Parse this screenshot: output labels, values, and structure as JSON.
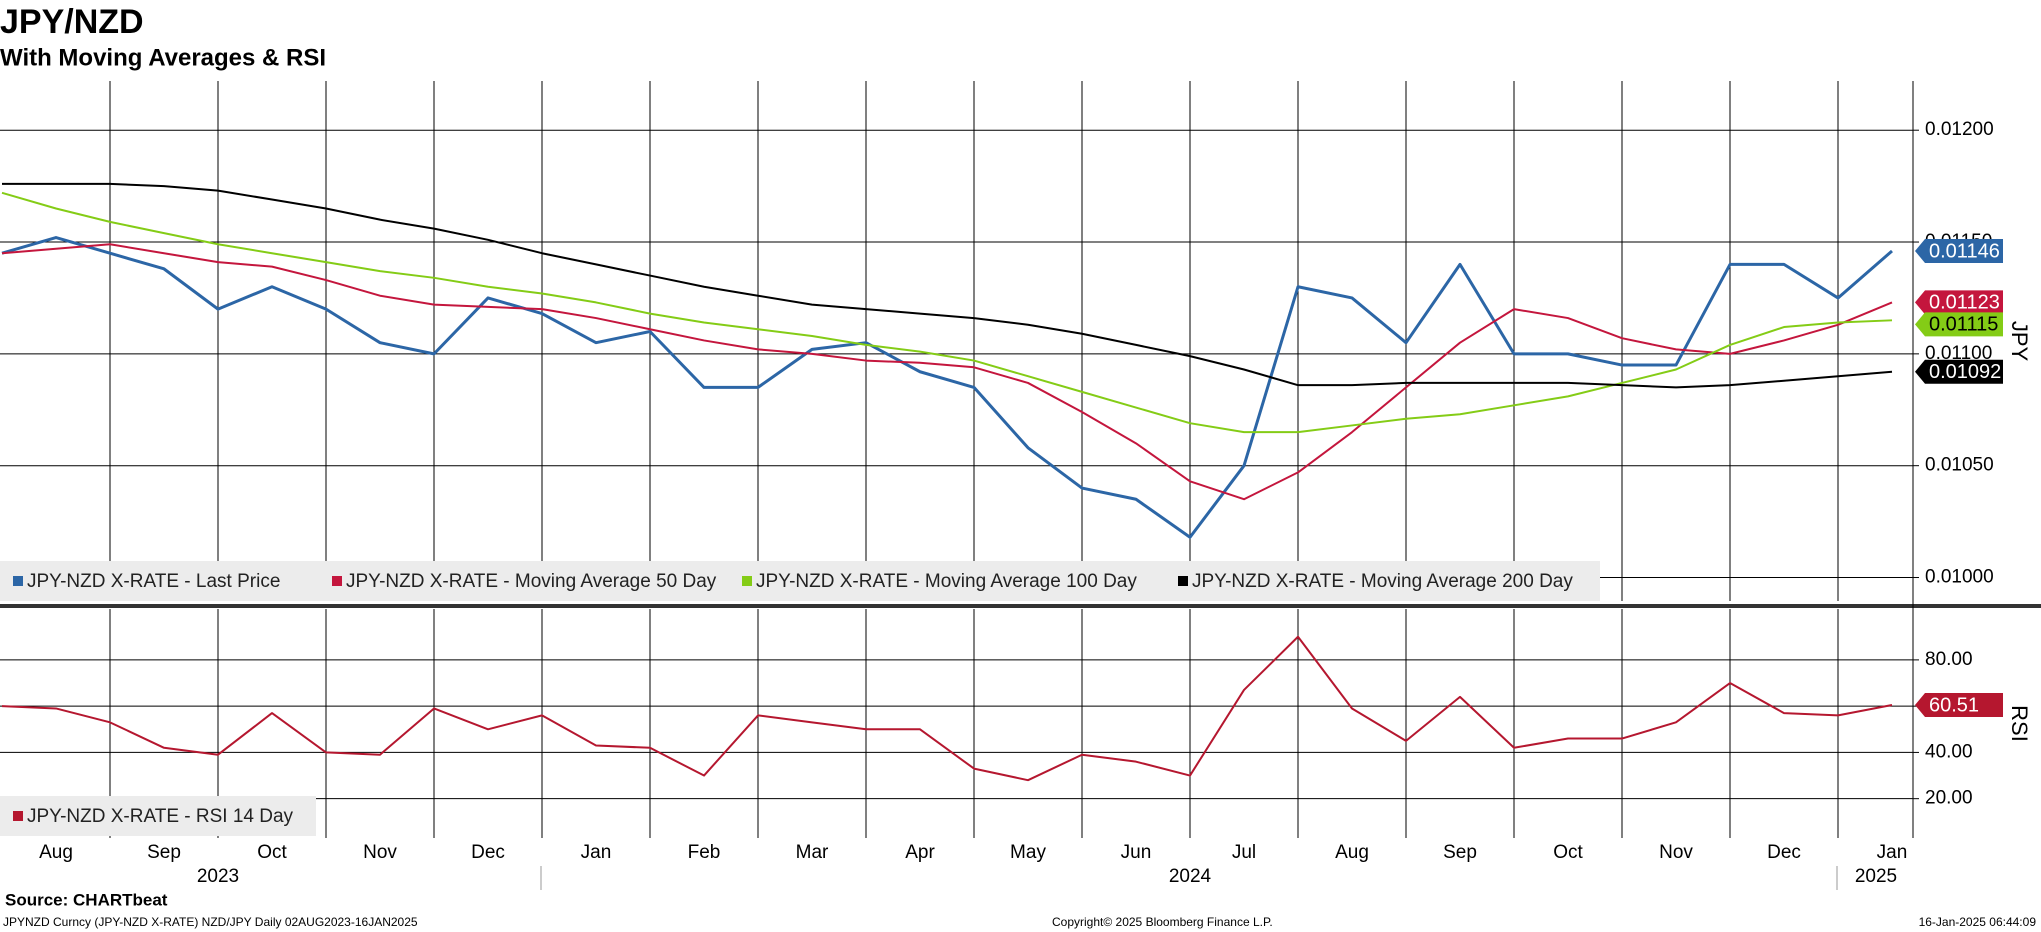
{
  "title": "JPY/NZD",
  "subtitle": "With Moving Averages & RSI",
  "chart_data": [
    {
      "type": "line",
      "y_label": "JPY",
      "ylim": [
        0.009895,
        0.01222
      ],
      "yticks": [
        {
          "value": 0.012,
          "label": "0.01200"
        },
        {
          "value": 0.0115,
          "label": "0.01150"
        },
        {
          "value": 0.011,
          "label": "0.01100"
        },
        {
          "value": 0.0105,
          "label": "0.01050"
        },
        {
          "value": 0.01,
          "label": "0.01000"
        }
      ],
      "grid": true,
      "legend": "lower left",
      "series": [
        {
          "name": "JPY-NZD X-RATE - Last Price",
          "color": "#2c66a6",
          "values": [
            0.01145,
            0.01152,
            0.01145,
            0.01138,
            0.0112,
            0.0113,
            0.0112,
            0.01105,
            0.011,
            0.01125,
            0.01118,
            0.01105,
            0.0111,
            0.01085,
            0.01085,
            0.01102,
            0.01105,
            0.01092,
            0.01085,
            0.01058,
            0.0104,
            0.01035,
            0.01018,
            0.0105,
            0.0113,
            0.01125,
            0.01105,
            0.0114,
            0.011,
            0.011,
            0.01095,
            0.01095,
            0.0114,
            0.0114,
            0.01125,
            0.01146
          ]
        },
        {
          "name": "JPY-NZD X-RATE - Moving Average 50 Day",
          "color": "#c4163d",
          "values": [
            0.01145,
            0.01147,
            0.01149,
            0.01145,
            0.01141,
            0.01139,
            0.01133,
            0.01126,
            0.01122,
            0.01121,
            0.0112,
            0.01116,
            0.01111,
            0.01106,
            0.01102,
            0.011,
            0.01097,
            0.01096,
            0.01094,
            0.01087,
            0.01074,
            0.0106,
            0.01043,
            0.01035,
            0.01047,
            0.01065,
            0.01085,
            0.01105,
            0.0112,
            0.01116,
            0.01107,
            0.01102,
            0.011,
            0.01106,
            0.01113,
            0.01123
          ]
        },
        {
          "name": "JPY-NZD X-RATE - Moving Average 100 Day",
          "color": "#84cc16",
          "values": [
            0.01172,
            0.01165,
            0.01159,
            0.01154,
            0.01149,
            0.01145,
            0.01141,
            0.01137,
            0.01134,
            0.0113,
            0.01127,
            0.01123,
            0.01118,
            0.01114,
            0.01111,
            0.01108,
            0.01104,
            0.01101,
            0.01097,
            0.0109,
            0.01083,
            0.01076,
            0.01069,
            0.01065,
            0.01065,
            0.01068,
            0.01071,
            0.01073,
            0.01077,
            0.01081,
            0.01087,
            0.01093,
            0.01104,
            0.01112,
            0.01114,
            0.01115
          ]
        },
        {
          "name": "JPY-NZD X-RATE - Moving Average 200 Day",
          "color": "#000000",
          "values": [
            0.01176,
            0.01176,
            0.01176,
            0.01175,
            0.01173,
            0.01169,
            0.01165,
            0.0116,
            0.01156,
            0.01151,
            0.01145,
            0.0114,
            0.01135,
            0.0113,
            0.01126,
            0.01122,
            0.0112,
            0.01118,
            0.01116,
            0.01113,
            0.01109,
            0.01104,
            0.01099,
            0.01093,
            0.01086,
            0.01086,
            0.01087,
            0.01087,
            0.01087,
            0.01087,
            0.01086,
            0.01085,
            0.01086,
            0.01088,
            0.0109,
            0.01092
          ]
        }
      ]
    },
    {
      "type": "line",
      "y_label": "RSI",
      "ylim": [
        3,
        102
      ],
      "yticks": [
        {
          "value": 80,
          "label": "80.00"
        },
        {
          "value": 60,
          "label": "60.00"
        },
        {
          "value": 40,
          "label": "40.00"
        },
        {
          "value": 20,
          "label": "20.00"
        }
      ],
      "grid": true,
      "legend": "lower left",
      "categories": [
        "Aug",
        null,
        "Sep",
        null,
        "Oct",
        null,
        "Nov",
        null,
        "Dec",
        null,
        "Jan",
        null,
        "Feb",
        null,
        "Mar",
        null,
        "Apr",
        null,
        "May",
        null,
        "Jun",
        null,
        "Jul",
        null,
        "Aug",
        null,
        "Sep",
        null,
        "Oct",
        null,
        "Nov",
        null,
        "Dec",
        null,
        "Jan",
        null
      ],
      "years": [
        "2023",
        "2024",
        "2025"
      ],
      "series": [
        {
          "name": "JPY-NZD X-RATE - RSI 14 Day",
          "color": "#b5172f",
          "values": [
            60,
            59,
            53,
            42,
            39,
            57,
            40,
            39,
            59,
            50,
            56,
            43,
            42,
            30,
            56,
            53,
            50,
            50,
            33,
            28,
            39,
            36,
            30,
            67,
            90,
            59,
            45,
            64,
            42,
            46,
            46,
            53,
            70,
            57,
            56,
            60.51
          ]
        }
      ]
    }
  ],
  "footer": {
    "source": "Source: CHARTbeat",
    "description": "JPYNZD Curncy (JPY-NZD X-RATE) NZD/JPY  Daily 02AUG2023-16JAN2025",
    "copyright": "Copyright© 2025 Bloomberg Finance L.P.",
    "timestamp": "16-Jan-2025 06:44:09"
  }
}
